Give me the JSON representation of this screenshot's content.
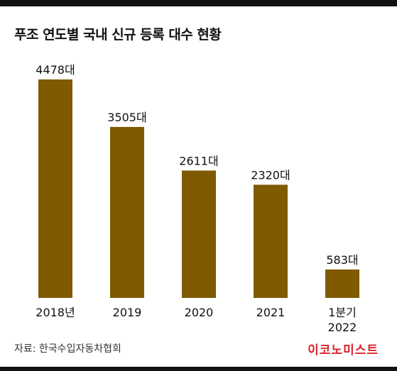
{
  "header": {
    "title": "푸조 연도별 국내 신규 등록 대수 현황"
  },
  "chart_data": {
    "type": "bar",
    "categories": [
      "2018년",
      "2019",
      "2020",
      "2021",
      "1분기\n2022"
    ],
    "values": [
      4478,
      3505,
      2611,
      2320,
      583
    ],
    "value_labels": [
      "4478대",
      "3505대",
      "2611대",
      "2320대",
      "583대"
    ],
    "ylim": [
      0,
      4478
    ],
    "grid": false,
    "bar_color": "#7f5a00"
  },
  "footer": {
    "source": "자료: 한국수입자동차협회",
    "brand": "이코노미스트"
  },
  "colors": {
    "bar": "#7f5a00",
    "brand": "#d9232e",
    "band": "#111111"
  }
}
